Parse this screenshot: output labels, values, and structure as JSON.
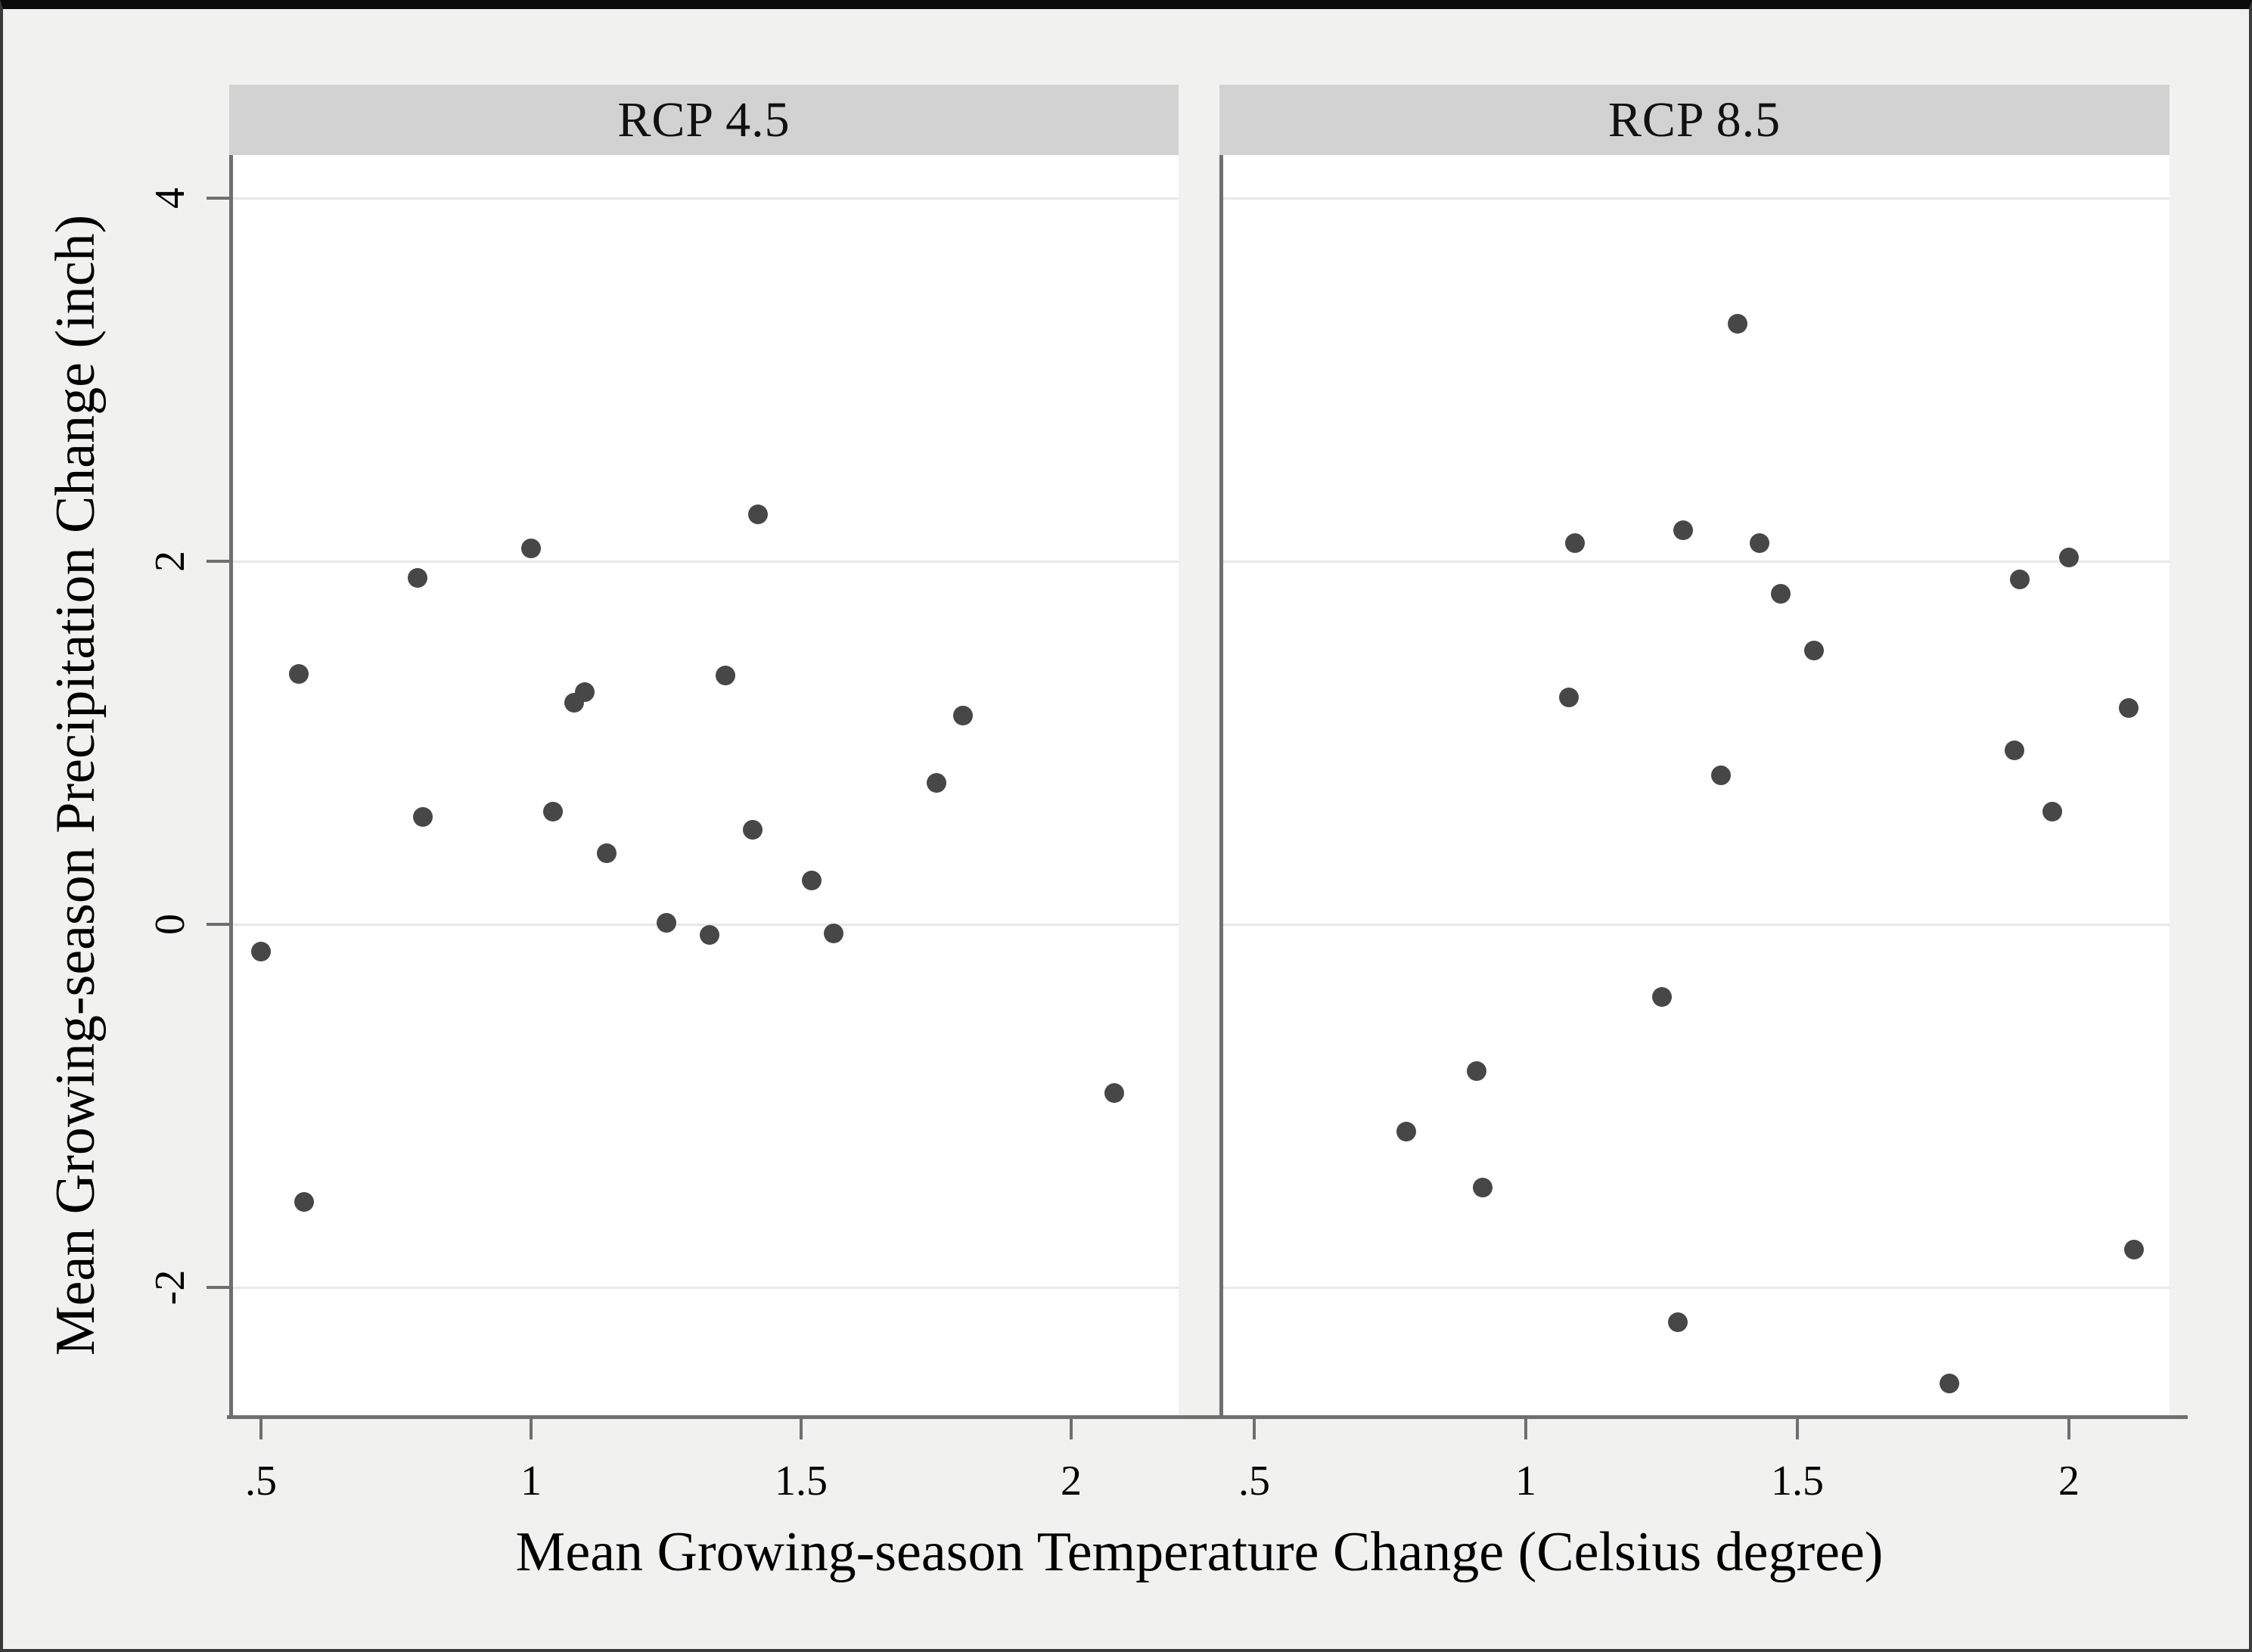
{
  "figure": {
    "x_axis_title": "Mean Growing-season Temperature Change (Celsius degree)",
    "y_axis_title": "Mean Growing-season Precipitation Change (inch)",
    "colors": {
      "figure_background": "#f1f1f0",
      "panel_header_background": "#d2d2d2",
      "plot_background": "#ffffff",
      "dot": "#474747",
      "axis_line": "#6f6f6f",
      "gridline": "#e8e8e8",
      "text": "#000000",
      "outer_border": "#0b0b0b"
    }
  },
  "chart_data": [
    {
      "type": "scatter",
      "panel": "RCP 4.5",
      "xlabel": "Mean Growing-season Temperature Change (Celsius degree)",
      "ylabel": "Mean Growing-season Precipitation Change (inch)",
      "xlim": [
        0.44,
        2.2
      ],
      "ylim": [
        -2.7,
        4.24
      ],
      "x_ticks": [
        0.5,
        1,
        1.5,
        2
      ],
      "x_tick_labels": [
        ".5",
        "1",
        "1.5",
        "2"
      ],
      "y_ticks": [
        -2,
        0,
        2,
        4
      ],
      "y_tick_labels": [
        "-2",
        "0",
        "2",
        "4"
      ],
      "grid": "horizontal",
      "legend": "none",
      "points": [
        [
          0.5,
          -0.15
        ],
        [
          0.57,
          1.38
        ],
        [
          0.58,
          -1.53
        ],
        [
          0.79,
          1.91
        ],
        [
          0.8,
          0.59
        ],
        [
          1.0,
          2.07
        ],
        [
          1.04,
          0.62
        ],
        [
          1.08,
          1.22
        ],
        [
          1.1,
          1.28
        ],
        [
          1.14,
          0.39
        ],
        [
          1.25,
          0.01
        ],
        [
          1.33,
          -0.06
        ],
        [
          1.36,
          1.37
        ],
        [
          1.42,
          2.26
        ],
        [
          1.41,
          0.52
        ],
        [
          1.52,
          0.24
        ],
        [
          1.56,
          -0.05
        ],
        [
          1.75,
          0.78
        ],
        [
          1.8,
          1.15
        ],
        [
          2.08,
          -0.93
        ]
      ]
    },
    {
      "type": "scatter",
      "panel": "RCP 8.5",
      "xlabel": "Mean Growing-season Temperature Change (Celsius degree)",
      "ylabel": "Mean Growing-season Precipitation Change (inch)",
      "xlim": [
        0.44,
        2.2
      ],
      "ylim": [
        -2.7,
        4.24
      ],
      "x_ticks": [
        0.5,
        1,
        1.5,
        2
      ],
      "x_tick_labels": [
        ".5",
        "1",
        "1.5",
        "2"
      ],
      "y_ticks": [
        -2,
        0,
        2,
        4
      ],
      "y_tick_labels": [
        "-2",
        "0",
        "2",
        "4"
      ],
      "grid": "horizontal",
      "legend": "none",
      "points": [
        [
          1.39,
          3.31
        ],
        [
          1.09,
          2.1
        ],
        [
          1.29,
          2.17
        ],
        [
          1.43,
          2.1
        ],
        [
          1.47,
          1.82
        ],
        [
          1.53,
          1.51
        ],
        [
          1.08,
          1.25
        ],
        [
          1.36,
          0.82
        ],
        [
          1.91,
          1.9
        ],
        [
          2.0,
          2.02
        ],
        [
          2.11,
          1.19
        ],
        [
          1.9,
          0.96
        ],
        [
          1.97,
          0.62
        ],
        [
          1.25,
          -0.4
        ],
        [
          0.91,
          -0.81
        ],
        [
          0.78,
          -1.14
        ],
        [
          0.92,
          -1.45
        ],
        [
          1.28,
          -2.19
        ],
        [
          1.78,
          -2.53
        ],
        [
          2.12,
          -1.79
        ]
      ]
    }
  ]
}
